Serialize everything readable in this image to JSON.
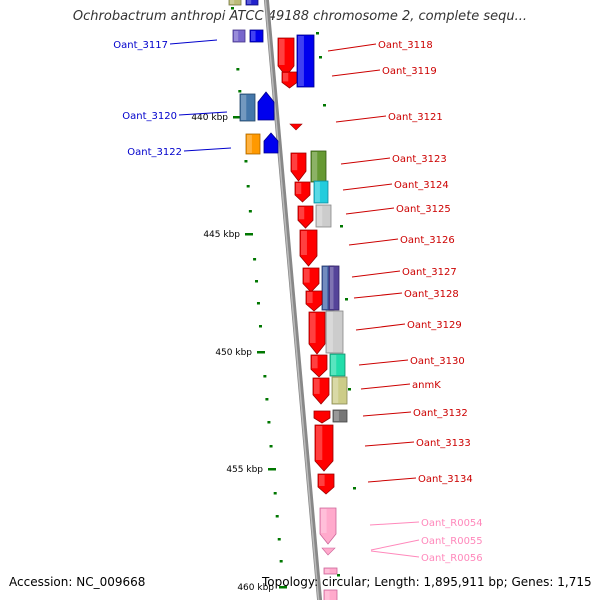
{
  "title": "Ochrobactrum anthropi ATCC 49188 chromosome 2, complete sequ...",
  "footer": {
    "accession": "Accession: NC_009668",
    "topology": "Topology: circular; Length: 1,895,911 bp; Genes: 1,715"
  },
  "colors": {
    "left_label": "#0000cc",
    "right_label": "#cc0000",
    "rna_label": "#ff88bb",
    "backbone": "#888888",
    "tick": "#007700"
  },
  "scale_ticks": [
    "440 kbp",
    "445 kbp",
    "450 kbp",
    "455 kbp",
    "460 kbp"
  ],
  "genes": [
    {
      "label": "Oant_3117",
      "side": "left"
    },
    {
      "label": "Oant_3118",
      "side": "right"
    },
    {
      "label": "Oant_3119",
      "side": "right"
    },
    {
      "label": "Oant_3120",
      "side": "left"
    },
    {
      "label": "Oant_3121",
      "side": "right"
    },
    {
      "label": "Oant_3122",
      "side": "left"
    },
    {
      "label": "Oant_3123",
      "side": "right"
    },
    {
      "label": "Oant_3124",
      "side": "right"
    },
    {
      "label": "Oant_3125",
      "side": "right"
    },
    {
      "label": "Oant_3126",
      "side": "right"
    },
    {
      "label": "Oant_3127",
      "side": "right"
    },
    {
      "label": "Oant_3128",
      "side": "right"
    },
    {
      "label": "Oant_3129",
      "side": "right"
    },
    {
      "label": "Oant_3130",
      "side": "right"
    },
    {
      "label": "anmK",
      "side": "right"
    },
    {
      "label": "Oant_3132",
      "side": "right"
    },
    {
      "label": "Oant_3133",
      "side": "right"
    },
    {
      "label": "Oant_3134",
      "side": "right"
    },
    {
      "label": "Oant_R0054",
      "side": "right",
      "type": "rna"
    },
    {
      "label": "Oant_R0055",
      "side": "right",
      "type": "rna"
    },
    {
      "label": "Oant_R0056",
      "side": "right",
      "type": "rna"
    }
  ]
}
